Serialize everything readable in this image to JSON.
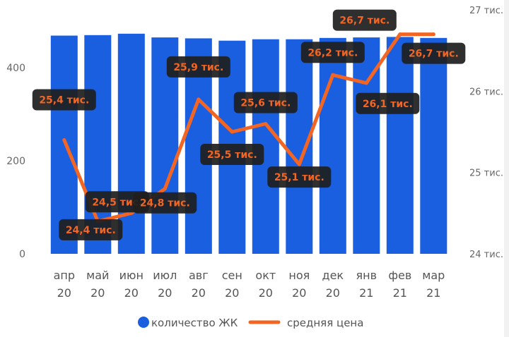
{
  "chart_data": {
    "type": "bar+line",
    "categories": [
      [
        "апр",
        "20"
      ],
      [
        "май",
        "20"
      ],
      [
        "июн",
        "20"
      ],
      [
        "июл",
        "20"
      ],
      [
        "авг",
        "20"
      ],
      [
        "сен",
        "20"
      ],
      [
        "окт",
        "20"
      ],
      [
        "ноя",
        "20"
      ],
      [
        "дек",
        "20"
      ],
      [
        "янв",
        "21"
      ],
      [
        "фев",
        "21"
      ],
      [
        "мар",
        "21"
      ]
    ],
    "series": [
      {
        "name": "количество ЖК",
        "type": "bar",
        "axis": "left",
        "color": "#1a5fe0",
        "values": [
          469,
          470,
          473,
          465,
          463,
          458,
          461,
          461,
          464,
          465,
          466,
          464
        ]
      },
      {
        "name": "средняя цена",
        "type": "line",
        "axis": "right",
        "color": "#f26522",
        "values": [
          25.4,
          24.4,
          24.5,
          24.8,
          25.9,
          25.5,
          25.6,
          25.1,
          26.2,
          26.1,
          26.7,
          26.7
        ],
        "labels": [
          "25,4 тис.",
          "24,4 тис.",
          "24,5 тис.",
          "24,8 тис.",
          "25,9 тис.",
          "25,5 тис.",
          "25,6 тис.",
          "25,1 тис.",
          "26,2 тис.",
          "26,1 тис.",
          "26,7 тис.",
          "26,7 тис."
        ]
      }
    ],
    "y_left": {
      "ylim": [
        0,
        550
      ],
      "ticks": [
        0,
        200,
        400
      ],
      "tick_labels": [
        "0",
        "200",
        "400"
      ]
    },
    "y_right": {
      "ylim": [
        24,
        27
      ],
      "ticks": [
        24,
        25,
        26,
        27
      ],
      "tick_labels": [
        "24 тис.",
        "25 тис.",
        "26 тис.",
        "27 тис."
      ]
    },
    "legend": {
      "position": "bottom-center"
    },
    "grid": false,
    "title": "",
    "xlabel": "",
    "ylabel": ""
  }
}
